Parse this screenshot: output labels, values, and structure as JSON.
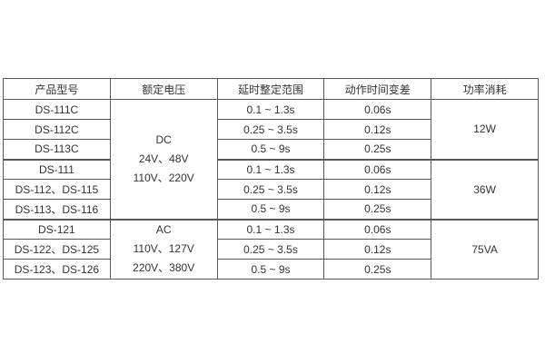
{
  "table": {
    "headers": [
      "产品型号",
      "额定电压",
      "延时整定范围",
      "动作时间变差",
      "功率消耗"
    ],
    "rows": [
      {
        "model": "DS-111C",
        "delay": "0.1 ~ 1.3s",
        "variation": "0.06s"
      },
      {
        "model": "DS-112C",
        "delay": "0.25 ~ 3.5s",
        "variation": "0.12s"
      },
      {
        "model": "DS-113C",
        "delay": "0.5 ~ 9s",
        "variation": "0.25s"
      },
      {
        "model": "DS-111",
        "delay": "0.1 ~ 1.3s",
        "variation": "0.06s"
      },
      {
        "model": "DS-112、DS-115",
        "delay": "0.25 ~ 3.5s",
        "variation": "0.12s"
      },
      {
        "model": "DS-113、DS-116",
        "delay": "0.5 ~ 9s",
        "variation": "0.25s"
      },
      {
        "model": "DS-121",
        "delay": "0.1 ~ 1.3s",
        "variation": "0.06s"
      },
      {
        "model": "DS-122、DS-125",
        "delay": "0.25 ~ 3.5s",
        "variation": "0.12s"
      },
      {
        "model": "DS-123、DS-126",
        "delay": "0.5 ~ 9s",
        "variation": "0.25s"
      }
    ],
    "voltage_groups": [
      {
        "type": "DC",
        "rowspan": 6,
        "lines": [
          "DC",
          "24V、48V",
          "110V、220V"
        ]
      },
      {
        "type": "AC",
        "rowspan": 3,
        "lines": [
          "AC",
          "110V、127V",
          "220V、380V"
        ]
      }
    ],
    "power_groups": [
      {
        "value": "12W",
        "rowspan": 3
      },
      {
        "value": "36W",
        "rowspan": 3
      },
      {
        "value": "75VA",
        "rowspan": 3
      }
    ],
    "colors": {
      "border": "#595959",
      "text": "#333333",
      "background": "#ffffff"
    }
  }
}
